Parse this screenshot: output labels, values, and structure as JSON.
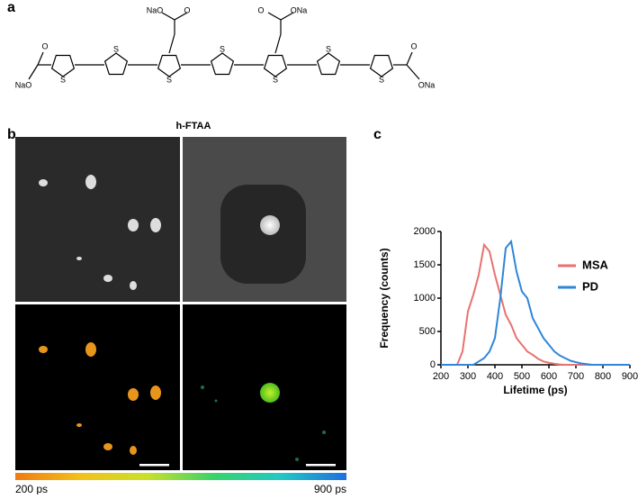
{
  "panel_labels": [
    "a",
    "b",
    "c"
  ],
  "molecule": {
    "name": "h-FTAA",
    "atoms": [
      "NaO",
      "O",
      "O",
      "ONa",
      "O",
      "NaO",
      "O",
      "ONa",
      "S",
      "S",
      "S",
      "S",
      "S",
      "S",
      "S"
    ]
  },
  "colorbar": {
    "min_label": "200 ps",
    "max_label": "900 ps"
  },
  "chart_data": {
    "type": "line",
    "xlabel": "Lifetime (ps)",
    "ylabel": "Frequency (counts)",
    "x": [
      200,
      220,
      240,
      260,
      280,
      300,
      320,
      340,
      360,
      380,
      400,
      420,
      440,
      460,
      480,
      500,
      520,
      540,
      560,
      580,
      600,
      620,
      640,
      660,
      680,
      700,
      720,
      740,
      760,
      780,
      800,
      820,
      840,
      860,
      880,
      900
    ],
    "series": [
      {
        "name": "MSA",
        "color": "#e8726f",
        "values": [
          0,
          0,
          0,
          0,
          200,
          800,
          1050,
          1350,
          1800,
          1700,
          1350,
          1050,
          750,
          600,
          400,
          300,
          200,
          150,
          90,
          50,
          30,
          15,
          5,
          0,
          0,
          0,
          0,
          0,
          0,
          0,
          0,
          0,
          0,
          0,
          0,
          0
        ]
      },
      {
        "name": "PD",
        "color": "#2f86d9",
        "values": [
          0,
          0,
          0,
          0,
          0,
          0,
          0,
          50,
          100,
          200,
          400,
          1000,
          1750,
          1850,
          1400,
          1100,
          1000,
          700,
          550,
          400,
          300,
          200,
          140,
          100,
          60,
          40,
          20,
          10,
          0,
          0,
          0,
          0,
          0,
          0,
          0,
          0
        ]
      }
    ],
    "xlim": [
      200,
      900
    ],
    "xticks": [
      200,
      300,
      400,
      500,
      600,
      700,
      800,
      900
    ],
    "ylim": [
      0,
      2000
    ],
    "yticks": [
      0,
      500,
      1000,
      1500,
      2000
    ]
  }
}
